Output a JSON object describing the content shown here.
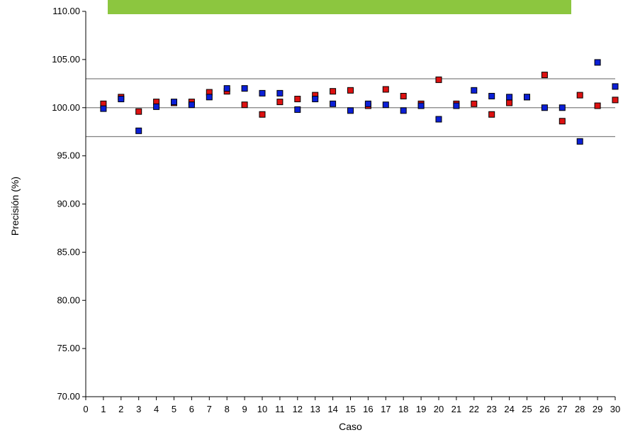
{
  "banner": {
    "text": "",
    "color": "#8cc63f"
  },
  "chart_data": {
    "type": "scatter",
    "title": "",
    "xlabel": "Caso",
    "ylabel": "Precisión (%)",
    "xlim": [
      0,
      30
    ],
    "ylim": [
      70,
      110
    ],
    "x_ticks": [
      "0",
      "1",
      "2",
      "3",
      "4",
      "5",
      "6",
      "7",
      "8",
      "9",
      "10",
      "11",
      "12",
      "13",
      "14",
      "15",
      "16",
      "17",
      "18",
      "19",
      "20",
      "21",
      "22",
      "23",
      "24",
      "25",
      "26",
      "27",
      "28",
      "29",
      "30"
    ],
    "y_ticks": [
      "70.00",
      "75.00",
      "80.00",
      "85.00",
      "90.00",
      "95.00",
      "100.00",
      "105.00",
      "110.00"
    ],
    "reference_lines": [
      97,
      100,
      103
    ],
    "grid": false,
    "series": [
      {
        "color": "#dd1111",
        "points": [
          [
            1,
            100.4
          ],
          [
            2,
            101.1
          ],
          [
            3,
            99.6
          ],
          [
            4,
            100.6
          ],
          [
            5,
            100.5
          ],
          [
            6,
            100.6
          ],
          [
            7,
            101.6
          ],
          [
            8,
            101.7
          ],
          [
            9,
            100.3
          ],
          [
            10,
            99.3
          ],
          [
            11,
            100.6
          ],
          [
            12,
            100.9
          ],
          [
            13,
            101.3
          ],
          [
            14,
            101.7
          ],
          [
            15,
            101.8
          ],
          [
            16,
            100.2
          ],
          [
            17,
            101.9
          ],
          [
            18,
            101.2
          ],
          [
            19,
            100.4
          ],
          [
            20,
            102.9
          ],
          [
            21,
            100.4
          ],
          [
            22,
            100.4
          ],
          [
            23,
            99.3
          ],
          [
            24,
            100.5
          ],
          [
            25,
            101.1
          ],
          [
            26,
            103.4
          ],
          [
            27,
            98.6
          ],
          [
            28,
            101.3
          ],
          [
            29,
            100.2
          ],
          [
            30,
            100.8
          ]
        ]
      },
      {
        "color": "#0b1fd6",
        "points": [
          [
            1,
            99.9
          ],
          [
            2,
            100.9
          ],
          [
            3,
            97.6
          ],
          [
            4,
            100.1
          ],
          [
            5,
            100.6
          ],
          [
            6,
            100.3
          ],
          [
            7,
            101.1
          ],
          [
            8,
            102.0
          ],
          [
            9,
            102.0
          ],
          [
            10,
            101.5
          ],
          [
            11,
            101.5
          ],
          [
            12,
            99.8
          ],
          [
            13,
            100.9
          ],
          [
            14,
            100.4
          ],
          [
            15,
            99.7
          ],
          [
            16,
            100.4
          ],
          [
            17,
            100.3
          ],
          [
            18,
            99.7
          ],
          [
            19,
            100.2
          ],
          [
            20,
            98.8
          ],
          [
            21,
            100.2
          ],
          [
            22,
            101.8
          ],
          [
            23,
            101.2
          ],
          [
            24,
            101.1
          ],
          [
            25,
            101.1
          ],
          [
            26,
            100.0
          ],
          [
            27,
            100.0
          ],
          [
            28,
            96.5
          ],
          [
            29,
            104.7
          ],
          [
            30,
            102.2
          ]
        ]
      }
    ]
  }
}
